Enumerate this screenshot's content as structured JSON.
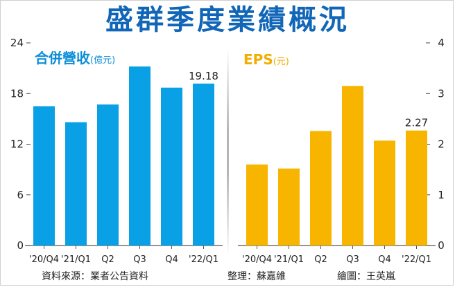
{
  "title": "盛群季度業績概況",
  "colors": {
    "title": "#1166b8",
    "revenue": "#0aa0e6",
    "eps": "#f7b500",
    "revenue_label": "#0a8ed8",
    "eps_label": "#f2ad00"
  },
  "chart_data": [
    {
      "type": "bar",
      "title": "合併營收",
      "unit": "(億元)",
      "categories": [
        "'20/Q4",
        "'21/Q1",
        "Q2",
        "Q3",
        "Q4",
        "'22/Q1"
      ],
      "values": [
        16.5,
        14.6,
        16.7,
        21.2,
        18.7,
        19.18
      ],
      "ylim": [
        0,
        24
      ],
      "yticks": [
        0,
        6,
        12,
        18,
        24
      ],
      "ytick_labels": [
        "0",
        "6",
        "12",
        "18",
        "24"
      ],
      "axis_side": "left",
      "data_labels": [
        {
          "index": 5,
          "text": "19.18"
        }
      ]
    },
    {
      "type": "bar",
      "title": "EPS",
      "unit": "(元)",
      "categories": [
        "'20/Q4",
        "'21/Q1",
        "Q2",
        "Q3",
        "Q4",
        "'22/Q1"
      ],
      "values": [
        1.6,
        1.52,
        2.26,
        3.15,
        2.07,
        2.27
      ],
      "ylim": [
        0,
        4
      ],
      "yticks": [
        0,
        1,
        2,
        3,
        4
      ],
      "ytick_labels": [
        "0",
        "1",
        "2",
        "3",
        "4"
      ],
      "axis_side": "right",
      "data_labels": [
        {
          "index": 5,
          "text": "2.27"
        }
      ]
    }
  ],
  "footer": {
    "source": "資料來源：業者公告資料",
    "editor": "整理：蘇嘉維",
    "graphic": "繪圖：王英嵐"
  }
}
